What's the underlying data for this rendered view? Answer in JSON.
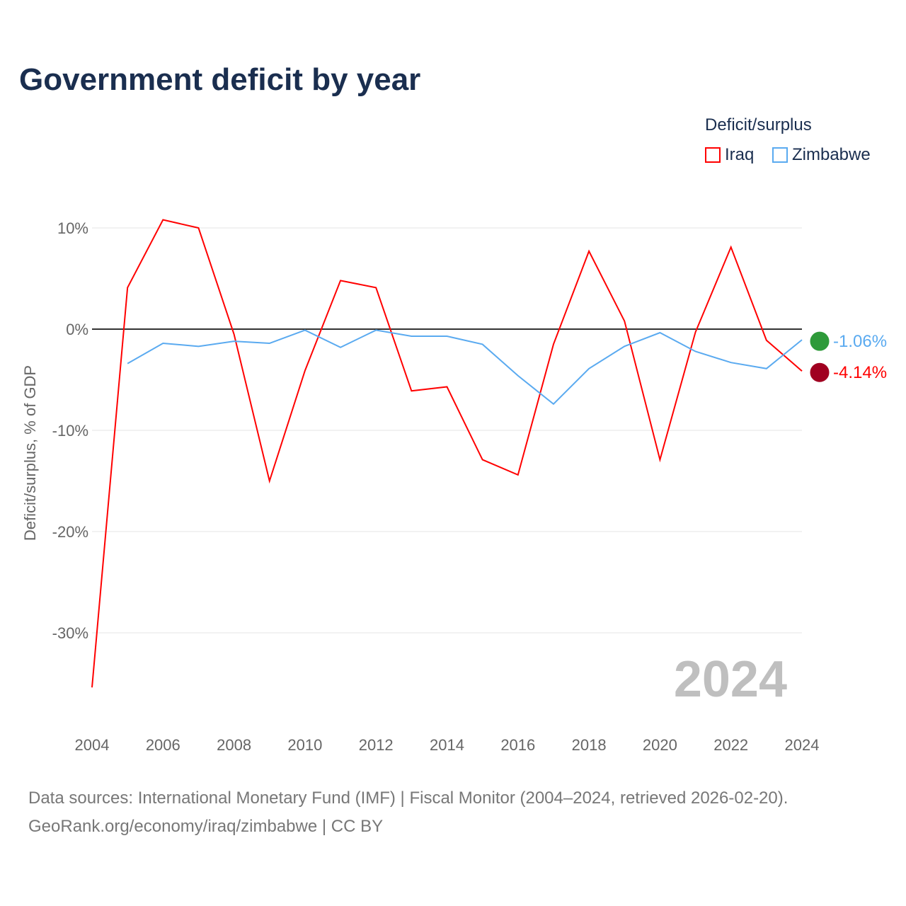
{
  "chart_data": {
    "type": "line",
    "title": "Government deficit by year",
    "ylabel": "Deficit/surplus, % of GDP",
    "xlabel": "",
    "ylim": [
      -37,
      12
    ],
    "yticks": [
      {
        "v": 10,
        "label": "10%"
      },
      {
        "v": 0,
        "label": "0%"
      },
      {
        "v": -10,
        "label": "-10%"
      },
      {
        "v": -20,
        "label": "-20%"
      },
      {
        "v": -30,
        "label": "-30%"
      }
    ],
    "xticks": [
      "2004",
      "2006",
      "2008",
      "2010",
      "2012",
      "2014",
      "2016",
      "2018",
      "2020",
      "2022",
      "2024"
    ],
    "xlim": [
      2004,
      2024
    ],
    "legend_title": "Deficit/surplus",
    "watermark_year": "2024",
    "series": [
      {
        "name": "Iraq",
        "color": "#ff0000",
        "end_label": "-4.14%",
        "x": [
          2004,
          2005,
          2006,
          2007,
          2008,
          2009,
          2010,
          2011,
          2012,
          2013,
          2014,
          2015,
          2016,
          2017,
          2018,
          2019,
          2020,
          2021,
          2022,
          2023,
          2024
        ],
        "values": [
          -35.4,
          4.1,
          10.8,
          10.0,
          -0.5,
          -15.0,
          -4.1,
          4.8,
          4.1,
          -6.1,
          -5.7,
          -12.9,
          -14.4,
          -1.5,
          7.7,
          0.8,
          -12.9,
          -0.3,
          8.1,
          -1.1,
          -4.14
        ]
      },
      {
        "name": "Zimbabwe",
        "color": "#5aaaf0",
        "end_label": "-1.06%",
        "x": [
          2005,
          2006,
          2007,
          2008,
          2009,
          2010,
          2011,
          2012,
          2013,
          2014,
          2015,
          2016,
          2017,
          2018,
          2019,
          2020,
          2021,
          2022,
          2023,
          2024
        ],
        "values": [
          -3.4,
          -1.4,
          -1.7,
          -1.2,
          -1.4,
          -0.1,
          -1.8,
          -0.1,
          -0.7,
          -0.7,
          -1.5,
          -4.6,
          -7.4,
          -3.9,
          -1.7,
          -0.35,
          -2.2,
          -3.3,
          -3.9,
          -1.06
        ]
      }
    ]
  },
  "footer": {
    "line1": "Data sources: International Monetary Fund (IMF) | Fiscal Monitor (2004–2024, retrieved 2026-02-20).",
    "line2": "GeoRank.org/economy/iraq/zimbabwe | CC BY"
  }
}
